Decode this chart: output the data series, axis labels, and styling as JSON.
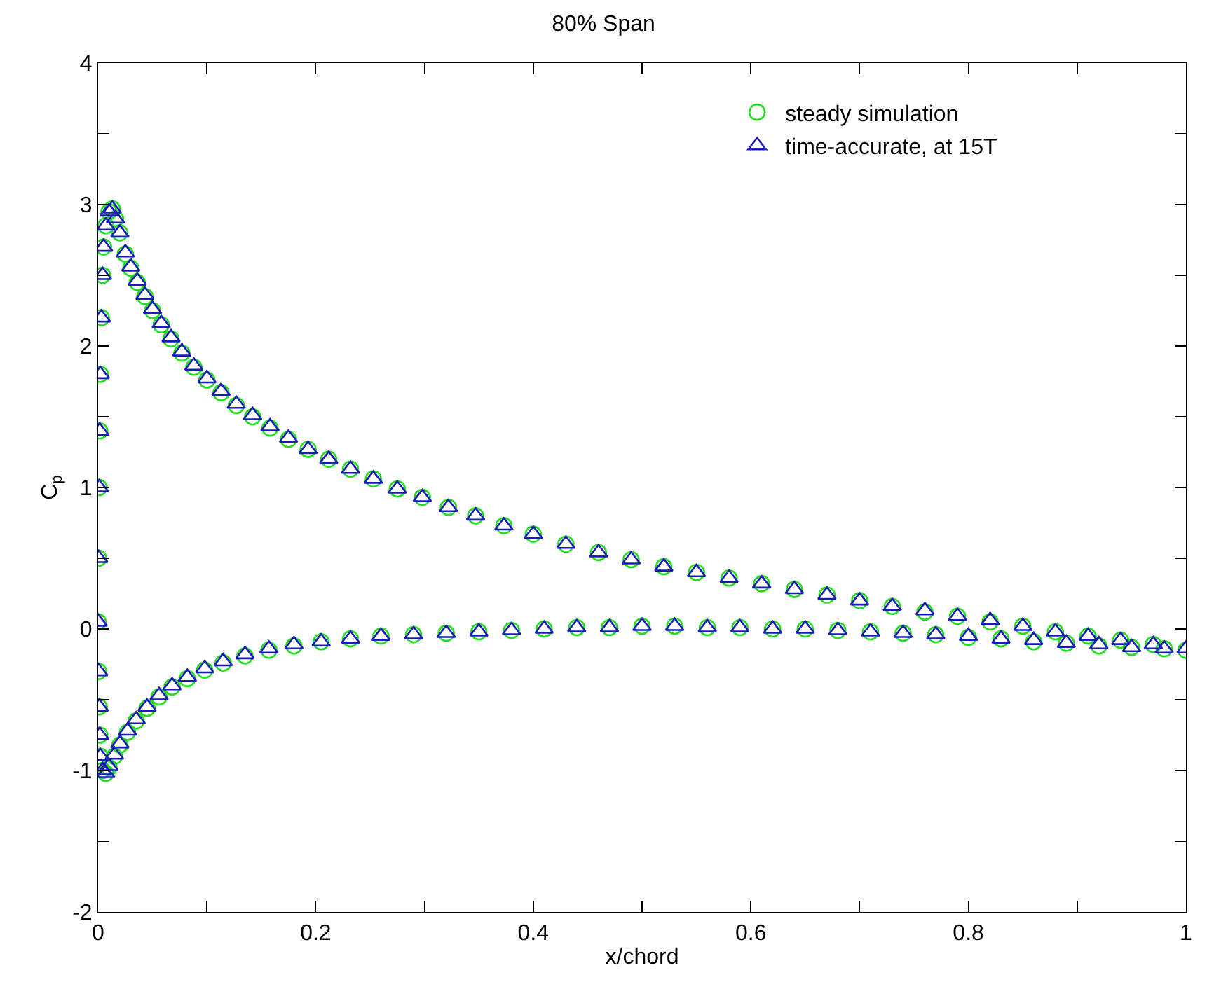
{
  "chart_data": {
    "type": "scatter",
    "title": "80% Span",
    "xlabel": "x/chord",
    "ylabel": "C$_{p}$",
    "xlim": [
      0,
      1
    ],
    "ylim": [
      -2,
      4
    ],
    "xticks": [
      0,
      {
        "value": 0.1,
        "label": null
      },
      0.2,
      {
        "value": 0.3,
        "label": null
      },
      0.4,
      {
        "value": 0.5,
        "label": null
      },
      0.6,
      {
        "value": 0.7,
        "label": null
      },
      0.8,
      {
        "value": 0.9,
        "label": null
      },
      1
    ],
    "yticks": [
      -2,
      {
        "value": -1.5,
        "label": null
      },
      -1,
      {
        "value": -0.5,
        "label": null
      },
      0,
      {
        "value": 0.5,
        "label": null
      },
      1,
      {
        "value": 1.5,
        "label": null
      },
      2,
      {
        "value": 2.5,
        "label": null
      },
      3,
      {
        "value": 3.5,
        "label": null
      },
      4
    ],
    "legend": "top right",
    "series": [
      {
        "name": "steady simulation",
        "color": "#22dd22",
        "marker": "circle",
        "x": [
          1.0,
          0.97,
          0.94,
          0.91,
          0.88,
          0.85,
          0.82,
          0.79,
          0.76,
          0.73,
          0.7,
          0.67,
          0.64,
          0.61,
          0.58,
          0.55,
          0.52,
          0.49,
          0.46,
          0.43,
          0.4,
          0.373,
          0.347,
          0.322,
          0.298,
          0.275,
          0.253,
          0.232,
          0.212,
          0.193,
          0.175,
          0.158,
          0.142,
          0.127,
          0.113,
          0.1,
          0.088,
          0.077,
          0.067,
          0.058,
          0.05,
          0.043,
          0.036,
          0.03,
          0.025,
          0.02,
          0.016,
          0.013,
          0.01,
          0.007,
          0.005,
          0.004,
          0.003,
          0.002,
          0.0015,
          0.001,
          0.0005,
          0,
          0.0005,
          0.001,
          0.0015,
          0.002,
          0.004,
          0.007,
          0.01,
          0.015,
          0.02,
          0.027,
          0.035,
          0.045,
          0.056,
          0.068,
          0.082,
          0.098,
          0.115,
          0.135,
          0.157,
          0.18,
          0.205,
          0.232,
          0.26,
          0.29,
          0.32,
          0.35,
          0.38,
          0.41,
          0.44,
          0.47,
          0.5,
          0.53,
          0.56,
          0.59,
          0.62,
          0.65,
          0.68,
          0.71,
          0.74,
          0.77,
          0.8,
          0.83,
          0.86,
          0.89,
          0.92,
          0.95,
          0.98
        ],
        "values": [
          -0.15,
          -0.11,
          -0.08,
          -0.05,
          -0.02,
          0.02,
          0.05,
          0.09,
          0.12,
          0.16,
          0.2,
          0.24,
          0.28,
          0.32,
          0.36,
          0.4,
          0.44,
          0.49,
          0.54,
          0.6,
          0.67,
          0.73,
          0.8,
          0.86,
          0.93,
          0.99,
          1.06,
          1.13,
          1.2,
          1.27,
          1.34,
          1.42,
          1.5,
          1.58,
          1.67,
          1.76,
          1.85,
          1.95,
          2.05,
          2.15,
          2.25,
          2.35,
          2.45,
          2.55,
          2.65,
          2.8,
          2.9,
          2.97,
          2.95,
          2.85,
          2.7,
          2.5,
          2.2,
          1.8,
          1.4,
          1.0,
          0.5,
          0.05,
          -0.3,
          -0.55,
          -0.75,
          -0.9,
          -1.0,
          -1.02,
          -0.98,
          -0.9,
          -0.82,
          -0.73,
          -0.65,
          -0.56,
          -0.48,
          -0.41,
          -0.35,
          -0.29,
          -0.24,
          -0.19,
          -0.15,
          -0.12,
          -0.09,
          -0.07,
          -0.05,
          -0.04,
          -0.03,
          -0.02,
          -0.01,
          0.0,
          0.01,
          0.01,
          0.02,
          0.02,
          0.01,
          0.01,
          0.0,
          0.0,
          -0.01,
          -0.02,
          -0.03,
          -0.04,
          -0.06,
          -0.07,
          -0.09,
          -0.1,
          -0.12,
          -0.13,
          -0.14
        ]
      },
      {
        "name": "time-accurate, at 15T",
        "color": "#1a1ab8",
        "marker": "triangle",
        "x": [
          1.0,
          0.97,
          0.94,
          0.91,
          0.88,
          0.85,
          0.82,
          0.79,
          0.76,
          0.73,
          0.7,
          0.67,
          0.64,
          0.61,
          0.58,
          0.55,
          0.52,
          0.49,
          0.46,
          0.43,
          0.4,
          0.373,
          0.347,
          0.322,
          0.298,
          0.275,
          0.253,
          0.232,
          0.212,
          0.193,
          0.175,
          0.158,
          0.142,
          0.127,
          0.113,
          0.1,
          0.088,
          0.077,
          0.067,
          0.058,
          0.05,
          0.043,
          0.036,
          0.03,
          0.025,
          0.02,
          0.016,
          0.013,
          0.01,
          0.007,
          0.005,
          0.004,
          0.003,
          0.002,
          0.0015,
          0.001,
          0.0005,
          0,
          0.0005,
          0.001,
          0.0015,
          0.002,
          0.004,
          0.007,
          0.01,
          0.015,
          0.02,
          0.027,
          0.035,
          0.045,
          0.056,
          0.068,
          0.082,
          0.098,
          0.115,
          0.135,
          0.157,
          0.18,
          0.205,
          0.232,
          0.26,
          0.29,
          0.32,
          0.35,
          0.38,
          0.41,
          0.44,
          0.47,
          0.5,
          0.53,
          0.56,
          0.59,
          0.62,
          0.65,
          0.68,
          0.71,
          0.74,
          0.77,
          0.8,
          0.83,
          0.86,
          0.89,
          0.92,
          0.95,
          0.98
        ],
        "values": [
          -0.14,
          -0.11,
          -0.08,
          -0.05,
          -0.02,
          0.02,
          0.06,
          0.09,
          0.13,
          0.16,
          0.2,
          0.24,
          0.28,
          0.32,
          0.36,
          0.4,
          0.44,
          0.49,
          0.54,
          0.6,
          0.67,
          0.73,
          0.8,
          0.86,
          0.93,
          0.99,
          1.06,
          1.13,
          1.2,
          1.27,
          1.35,
          1.43,
          1.51,
          1.59,
          1.68,
          1.77,
          1.86,
          1.96,
          2.06,
          2.16,
          2.26,
          2.36,
          2.46,
          2.56,
          2.66,
          2.8,
          2.9,
          2.97,
          2.95,
          2.85,
          2.7,
          2.5,
          2.2,
          1.8,
          1.4,
          1.0,
          0.5,
          0.05,
          -0.3,
          -0.55,
          -0.75,
          -0.9,
          -1.0,
          -1.02,
          -0.97,
          -0.89,
          -0.81,
          -0.72,
          -0.64,
          -0.55,
          -0.47,
          -0.4,
          -0.34,
          -0.28,
          -0.23,
          -0.18,
          -0.14,
          -0.11,
          -0.09,
          -0.07,
          -0.05,
          -0.04,
          -0.03,
          -0.02,
          -0.01,
          0.0,
          0.01,
          0.01,
          0.02,
          0.02,
          0.01,
          0.01,
          0.0,
          0.0,
          -0.01,
          -0.02,
          -0.03,
          -0.04,
          -0.05,
          -0.07,
          -0.08,
          -0.1,
          -0.11,
          -0.13,
          -0.14
        ]
      }
    ]
  }
}
